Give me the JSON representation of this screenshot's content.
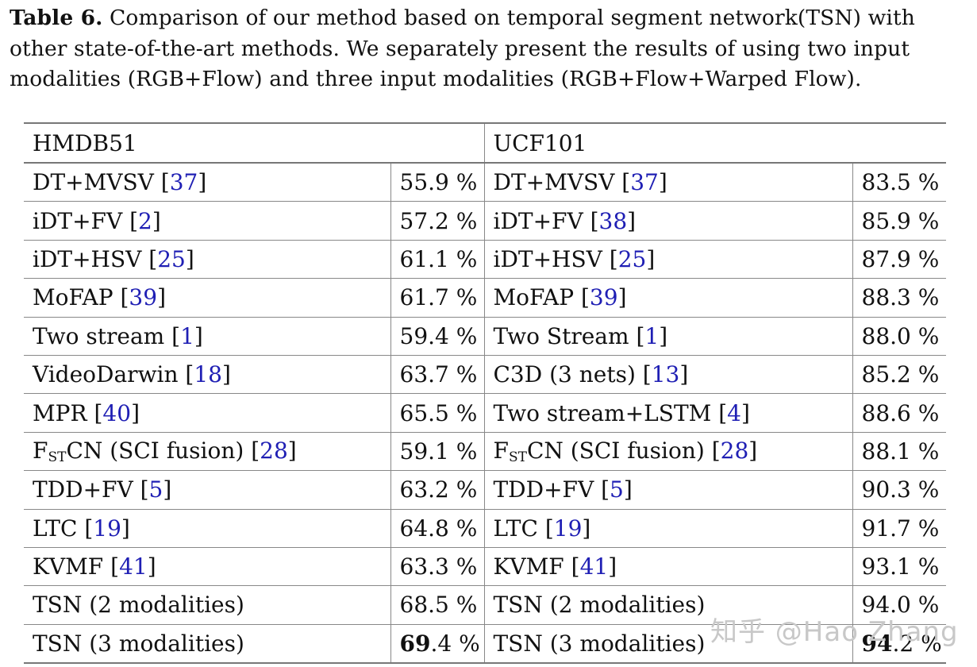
{
  "caption": {
    "label": "Table 6.",
    "text": " Comparison of our method based on temporal segment network(TSN) with other state-of-the-art methods. We separately present the results of using two input modalities (RGB+Flow) and three input modalities (RGB+Flow+Warped Flow)."
  },
  "table": {
    "headers": {
      "left": "HMDB51",
      "right": "UCF101"
    },
    "rows": [
      {
        "hmdb_method": "DT+MVSV",
        "hmdb_ref": "37",
        "hmdb_acc": "55.9 %",
        "ucf_method": "DT+MVSV",
        "ucf_ref": "37",
        "ucf_acc": "83.5 %"
      },
      {
        "hmdb_method": "iDT+FV",
        "hmdb_ref": "2",
        "hmdb_acc": "57.2 %",
        "ucf_method": "iDT+FV",
        "ucf_ref": "38",
        "ucf_acc": "85.9 %"
      },
      {
        "hmdb_method": "iDT+HSV",
        "hmdb_ref": "25",
        "hmdb_acc": "61.1 %",
        "ucf_method": "iDT+HSV",
        "ucf_ref": "25",
        "ucf_acc": "87.9 %"
      },
      {
        "hmdb_method": "MoFAP",
        "hmdb_ref": "39",
        "hmdb_acc": "61.7 %",
        "ucf_method": "MoFAP",
        "ucf_ref": "39",
        "ucf_acc": "88.3 %"
      },
      {
        "hmdb_method": "Two stream",
        "hmdb_ref": "1",
        "hmdb_acc": "59.4 %",
        "ucf_method": "Two Stream",
        "ucf_ref": "1",
        "ucf_acc": "88.0 %"
      },
      {
        "hmdb_method": "VideoDarwin",
        "hmdb_ref": "18",
        "hmdb_acc": "63.7 %",
        "ucf_method": "C3D (3 nets)",
        "ucf_ref": "13",
        "ucf_acc": "85.2 %"
      },
      {
        "hmdb_method": "MPR",
        "hmdb_ref": "40",
        "hmdb_acc": "65.5 %",
        "ucf_method": "Two stream+LSTM",
        "ucf_ref": "4",
        "ucf_acc": "88.6 %"
      },
      {
        "hmdb_method_main": "F",
        "hmdb_method_sub": "ST",
        "hmdb_method_rest": "CN (SCI fusion)",
        "hmdb_ref": "28",
        "hmdb_acc": "59.1 %",
        "ucf_method_main": "F",
        "ucf_method_sub": "ST",
        "ucf_method_rest": "CN (SCI fusion)",
        "ucf_ref": "28",
        "ucf_acc": "88.1 %"
      },
      {
        "hmdb_method": "TDD+FV",
        "hmdb_ref": "5",
        "hmdb_acc": "63.2 %",
        "ucf_method": "TDD+FV",
        "ucf_ref": "5",
        "ucf_acc": "90.3 %"
      },
      {
        "hmdb_method": "LTC",
        "hmdb_ref": "19",
        "hmdb_acc": "64.8 %",
        "ucf_method": "LTC",
        "ucf_ref": "19",
        "ucf_acc": "91.7 %"
      },
      {
        "hmdb_method": "KVMF",
        "hmdb_ref": "41",
        "hmdb_acc": "63.3 %",
        "ucf_method": "KVMF",
        "ucf_ref": "41",
        "ucf_acc": "93.1 %"
      },
      {
        "hmdb_method": "TSN (2 modalities)",
        "hmdb_acc": "68.5 %",
        "ucf_method": "TSN (2 modalities)",
        "ucf_acc": "94.0 %"
      },
      {
        "hmdb_method": "TSN (3 modalities)",
        "hmdb_acc_int": "69",
        "hmdb_acc_frac": ".4 %",
        "ucf_method": "TSN (3 modalities)",
        "ucf_acc_int": "94",
        "ucf_acc_frac": ".2 %"
      }
    ]
  },
  "watermark": "知乎 @Hao Zhang"
}
